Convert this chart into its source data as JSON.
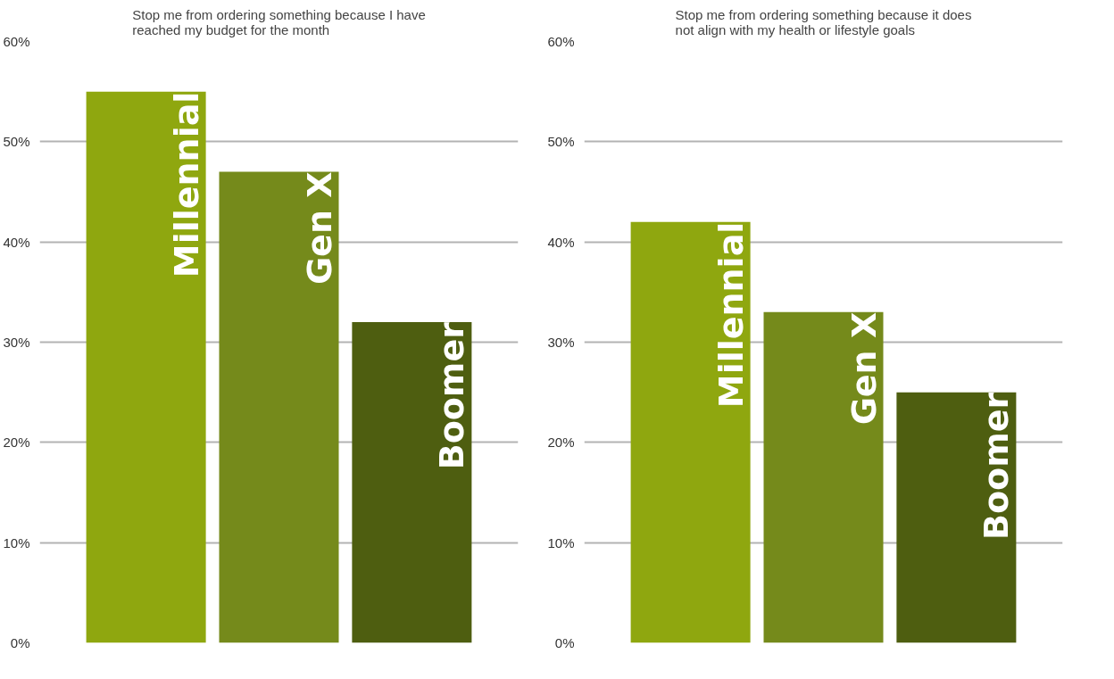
{
  "chart_data": [
    {
      "type": "bar",
      "title": "Stop me from ordering something because I have reached my budget for the month",
      "categories": [
        "Millennial",
        "Gen X",
        "Boomer"
      ],
      "values": [
        55,
        47,
        32
      ],
      "colors": [
        "#8fa70f",
        "#758a1b",
        "#4e5e10"
      ],
      "ylim": [
        0,
        60
      ],
      "yticks": [
        {
          "value": 0,
          "label": "0%"
        },
        {
          "value": 10,
          "label": "10%"
        },
        {
          "value": 20,
          "label": "20%"
        },
        {
          "value": 30,
          "label": "30%"
        },
        {
          "value": 40,
          "label": "40%"
        },
        {
          "value": 50,
          "label": "50%"
        },
        {
          "value": 60,
          "label": "60%"
        }
      ],
      "grid": "y"
    },
    {
      "type": "bar",
      "title": "Stop me from ordering something because it does not align with my health or lifestyle goals",
      "categories": [
        "Millennial",
        "Gen X",
        "Boomer"
      ],
      "values": [
        42,
        33,
        25
      ],
      "colors": [
        "#8fa70f",
        "#758a1b",
        "#4e5e10"
      ],
      "ylim": [
        0,
        60
      ],
      "yticks": [
        {
          "value": 0,
          "label": "0%"
        },
        {
          "value": 10,
          "label": "10%"
        },
        {
          "value": 20,
          "label": "20%"
        },
        {
          "value": 30,
          "label": "30%"
        },
        {
          "value": 40,
          "label": "40%"
        },
        {
          "value": 50,
          "label": "50%"
        },
        {
          "value": 60,
          "label": "60%"
        }
      ],
      "grid": "y"
    }
  ]
}
